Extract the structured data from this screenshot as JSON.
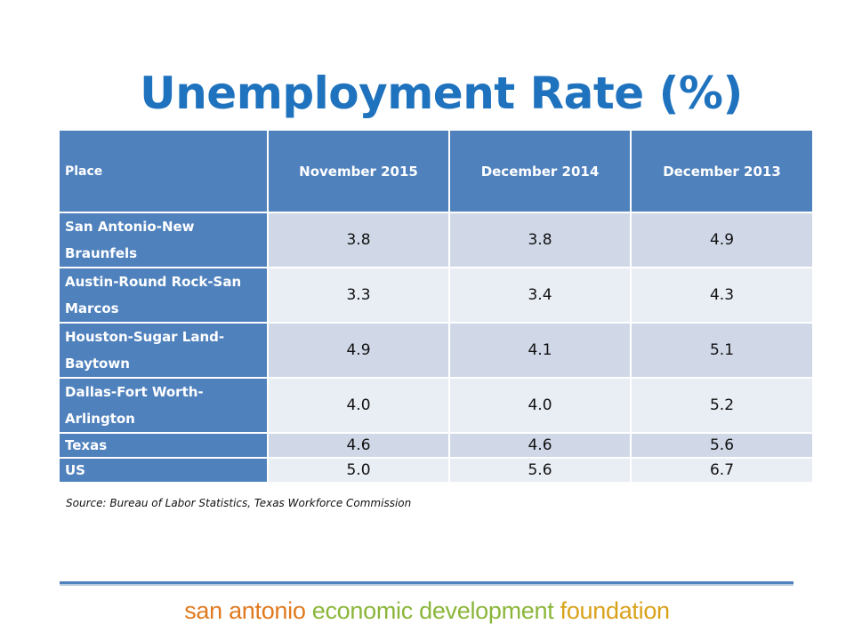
{
  "slide": {
    "title": "Unemployment Rate (%)"
  },
  "table": {
    "headers": [
      "Place",
      "November 2015",
      "December 2014",
      "December 2013"
    ],
    "rows": [
      {
        "place": "San Antonio-New Braunfels",
        "values": [
          "3.8",
          "3.8",
          "4.9"
        ]
      },
      {
        "place": "Austin-Round  Rock-San Marcos",
        "values": [
          "3.3",
          "3.4",
          "4.3"
        ]
      },
      {
        "place": "Houston-Sugar  Land-Baytown",
        "values": [
          "4.9",
          "4.1",
          "5.1"
        ]
      },
      {
        "place": "Dallas-Fort  Worth-Arlington",
        "values": [
          "4.0",
          "4.0",
          "5.2"
        ]
      },
      {
        "place": "Texas",
        "values": [
          "4.6",
          "4.6",
          "5.6"
        ]
      },
      {
        "place": "US",
        "values": [
          "5.0",
          "5.6",
          "6.7"
        ]
      }
    ]
  },
  "source": "Source: Bureau of Labor Statistics, Texas Workforce Commission",
  "footer": {
    "logo_part1": "san antonio",
    "logo_part2": "economic development",
    "logo_part3": "foundation"
  },
  "colors": {
    "title": "#1f72bd",
    "header_fill": "#4f81bd",
    "row_odd": "#d0d8e8",
    "row_even": "#e9edf4",
    "logo_orange": "#e07a1f",
    "logo_green": "#8bb63a",
    "logo_gold": "#d9a21b"
  }
}
